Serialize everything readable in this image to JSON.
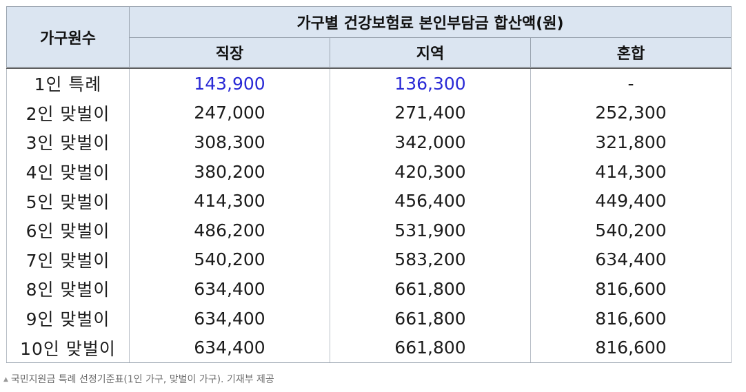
{
  "table": {
    "header_count": "가구원수",
    "header_group": "가구별 건강보험료 본인부담금 합산액(원)",
    "header_sub": [
      "직장",
      "지역",
      "혼합"
    ],
    "rows": [
      {
        "label": "1인 특례",
        "values": [
          "143,900",
          "136,300",
          "-"
        ],
        "highlight": [
          true,
          true,
          false
        ]
      },
      {
        "label": "2인 맞벌이",
        "values": [
          "247,000",
          "271,400",
          "252,300"
        ],
        "highlight": [
          false,
          false,
          false
        ]
      },
      {
        "label": "3인 맞벌이",
        "values": [
          "308,300",
          "342,000",
          "321,800"
        ],
        "highlight": [
          false,
          false,
          false
        ]
      },
      {
        "label": "4인 맞벌이",
        "values": [
          "380,200",
          "420,300",
          "414,300"
        ],
        "highlight": [
          false,
          false,
          false
        ]
      },
      {
        "label": "5인 맞벌이",
        "values": [
          "414,300",
          "456,400",
          "449,400"
        ],
        "highlight": [
          false,
          false,
          false
        ]
      },
      {
        "label": "6인 맞벌이",
        "values": [
          "486,200",
          "531,900",
          "540,200"
        ],
        "highlight": [
          false,
          false,
          false
        ]
      },
      {
        "label": "7인 맞벌이",
        "values": [
          "540,200",
          "583,200",
          "634,400"
        ],
        "highlight": [
          false,
          false,
          false
        ]
      },
      {
        "label": "8인 맞벌이",
        "values": [
          "634,400",
          "661,800",
          "816,600"
        ],
        "highlight": [
          false,
          false,
          false
        ]
      },
      {
        "label": "9인 맞벌이",
        "values": [
          "634,400",
          "661,800",
          "816,600"
        ],
        "highlight": [
          false,
          false,
          false
        ]
      },
      {
        "label": "10인 맞벌이",
        "values": [
          "634,400",
          "661,800",
          "816,600"
        ],
        "highlight": [
          false,
          false,
          false
        ]
      }
    ]
  },
  "caption": "국민지원금 특례 선정기준표(1인 가구, 맞벌이 가구). 기재부 제공",
  "caption_icon": "triangle-up-icon",
  "colors": {
    "header_bg": "#dbe5f1",
    "highlight_text": "#2a2ad6"
  }
}
